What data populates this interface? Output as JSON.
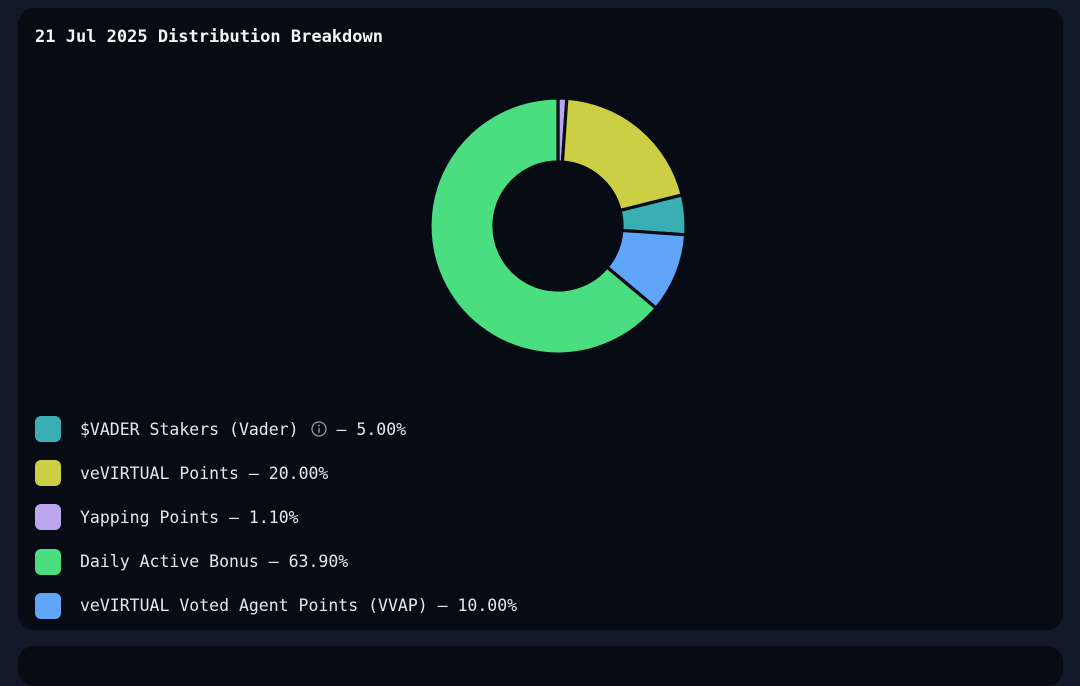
{
  "title": "21 Jul 2025 Distribution Breakdown",
  "chart_data": {
    "type": "pie",
    "title": "21 Jul 2025 Distribution Breakdown",
    "slices": [
      {
        "label": "$VADER Stakers (Vader)",
        "value": 5.0,
        "display": "5.00%",
        "color": "#3aafb3",
        "info_icon": "info-circle-icon"
      },
      {
        "label": "veVIRTUAL Points",
        "value": 20.0,
        "display": "20.00%",
        "color": "#cccf44"
      },
      {
        "label": "Yapping Points",
        "value": 1.1,
        "display": "1.10%",
        "color": "#bba7f0"
      },
      {
        "label": "Daily Active Bonus",
        "value": 63.9,
        "display": "63.90%",
        "color": "#4ade80"
      },
      {
        "label": "veVIRTUAL Voted Agent Points (VVAP)",
        "value": 10.0,
        "display": "10.00%",
        "color": "#60a5fa"
      }
    ],
    "draw_order": [
      2,
      1,
      0,
      4,
      3
    ],
    "legend_position": "bottom-left",
    "donut": true
  }
}
